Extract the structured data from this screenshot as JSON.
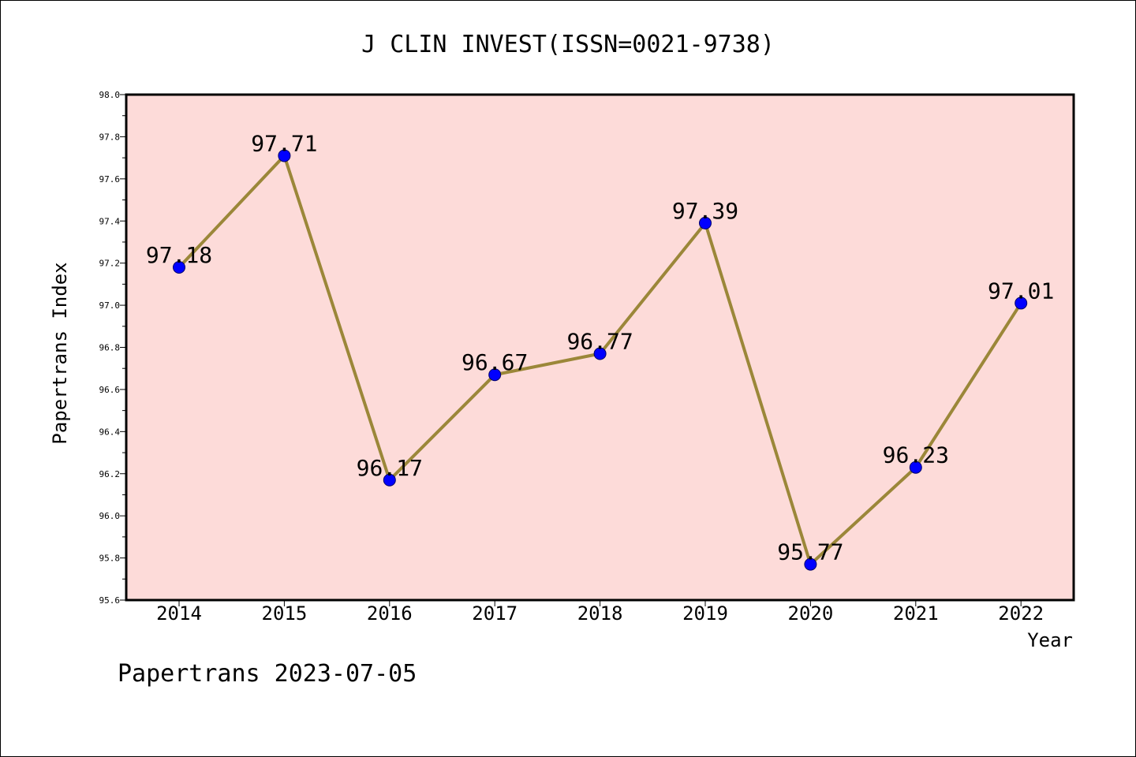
{
  "chart_data": {
    "type": "line",
    "title": "J CLIN INVEST(ISSN=0021-9738)",
    "xlabel": "Year",
    "ylabel": "Papertrans Index",
    "categories": [
      "2014",
      "2015",
      "2016",
      "2017",
      "2018",
      "2019",
      "2020",
      "2021",
      "2022"
    ],
    "series": [
      {
        "values": [
          97.18,
          97.71,
          96.17,
          96.67,
          96.77,
          97.39,
          95.77,
          96.23,
          97.01
        ]
      }
    ],
    "data_labels": [
      "97.18",
      "97.71",
      "96.17",
      "96.67",
      "96.77",
      "97.39",
      "95.77",
      "96.23",
      "97.01"
    ],
    "ylim": [
      95.6,
      98.0
    ],
    "yticks": [
      "95.6",
      "95.8",
      "96.0",
      "96.2",
      "96.4",
      "96.6",
      "96.8",
      "97.0",
      "97.2",
      "97.4",
      "97.6",
      "97.8",
      "98.0"
    ],
    "grid": false,
    "colors": {
      "plot_background": "#fddbd9",
      "line": "#9b8739",
      "marker": "#0000ff"
    }
  },
  "footer": "Papertrans 2023-07-05"
}
